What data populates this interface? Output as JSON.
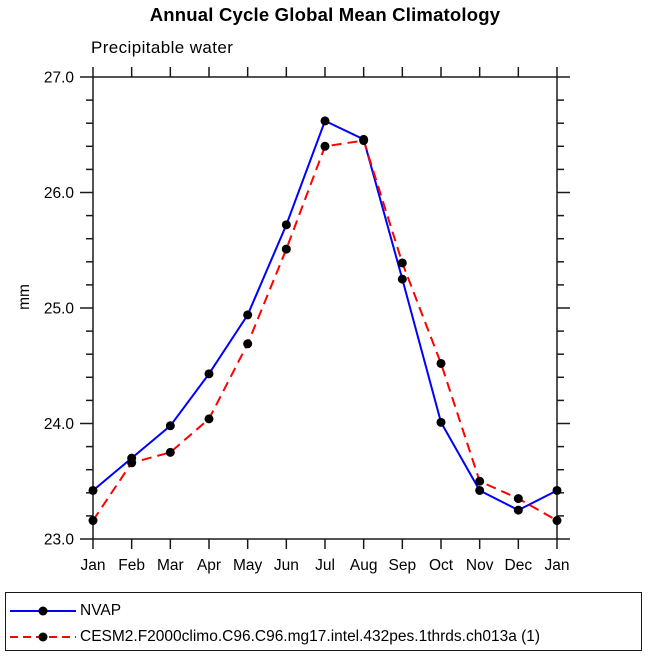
{
  "title": "Annual Cycle Global Mean Climatology",
  "subtitle": "Precipitable water",
  "chart_data": {
    "type": "line",
    "title": "Annual Cycle Global Mean Climatology",
    "subtitle": "Precipitable water",
    "xlabel": "",
    "ylabel": "mm",
    "x_categories": [
      "Jan",
      "Feb",
      "Mar",
      "Apr",
      "May",
      "Jun",
      "Jul",
      "Aug",
      "Sep",
      "Oct",
      "Nov",
      "Dec",
      "Jan"
    ],
    "ylim": [
      23.0,
      27.0
    ],
    "yticks": [
      23.0,
      24.0,
      25.0,
      26.0,
      27.0
    ],
    "ytick_labels": [
      "23.0",
      "24.0",
      "25.0",
      "26.0",
      "27.0"
    ],
    "ytick_minor_step": 0.2,
    "grid": false,
    "axis_color": "#1a1a1a",
    "marker_color": "#000000",
    "legend_position": "bottom-left-box",
    "series": [
      {
        "name": "NVAP",
        "color": "#0000ff",
        "style": "solid",
        "marker": "circle",
        "values": [
          23.42,
          23.7,
          23.98,
          24.43,
          24.94,
          25.72,
          26.62,
          26.46,
          25.25,
          24.01,
          23.42,
          23.25,
          23.42
        ]
      },
      {
        "name": "CESM2.F2000climo.C96.C96.mg17.intel.432pes.1thrds.ch013a (1)",
        "color": "#ff0000",
        "style": "dashed",
        "marker": "circle",
        "values": [
          23.16,
          23.66,
          23.75,
          24.04,
          24.69,
          25.51,
          26.4,
          26.45,
          25.39,
          24.52,
          23.5,
          23.35,
          23.16
        ]
      }
    ]
  }
}
